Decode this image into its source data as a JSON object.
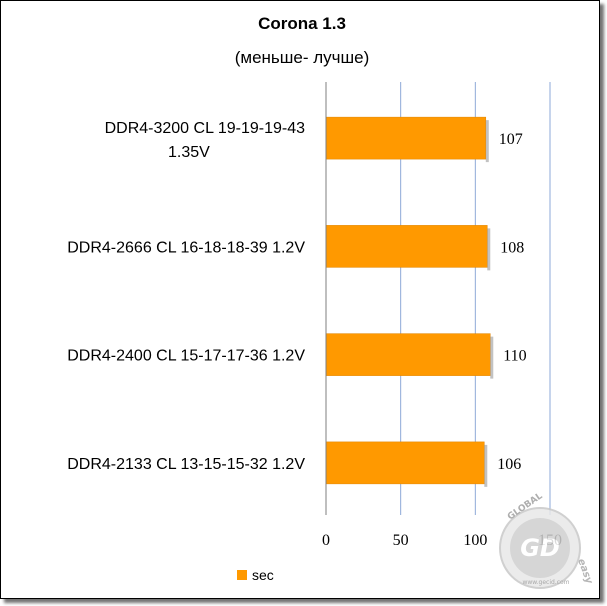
{
  "chart_data": {
    "type": "bar",
    "orientation": "horizontal",
    "title": "Corona 1.3",
    "subtitle": "(меньше- лучше)",
    "categories": [
      "DDR4-3200 CL 19-19-19-43 1.35V",
      "DDR4-2666 CL 16-18-18-39 1.2V",
      "DDR4-2400 CL 15-17-17-36 1.2V",
      "DDR4-2133 CL 13-15-15-32 1.2V"
    ],
    "category_lines": [
      [
        "DDR4-3200 CL 19-19-19-43",
        "1.35V"
      ],
      [
        "DDR4-2666 CL 16-18-18-39 1.2V"
      ],
      [
        "DDR4-2400 CL 15-17-17-36 1.2V"
      ],
      [
        "DDR4-2133 CL 13-15-15-32 1.2V"
      ]
    ],
    "series": [
      {
        "name": "sec",
        "values": [
          107,
          108,
          110,
          106
        ],
        "color": "#FF9900"
      }
    ],
    "xlim": [
      0,
      150
    ],
    "xticks": [
      0,
      50,
      100,
      150
    ],
    "grid": true,
    "gridline_color": "#8EA9D8",
    "legend_placement": "bottom"
  },
  "watermark": {
    "words": [
      "GLOBAL",
      "GD",
      "easy"
    ],
    "site": "www.gecid.com"
  }
}
